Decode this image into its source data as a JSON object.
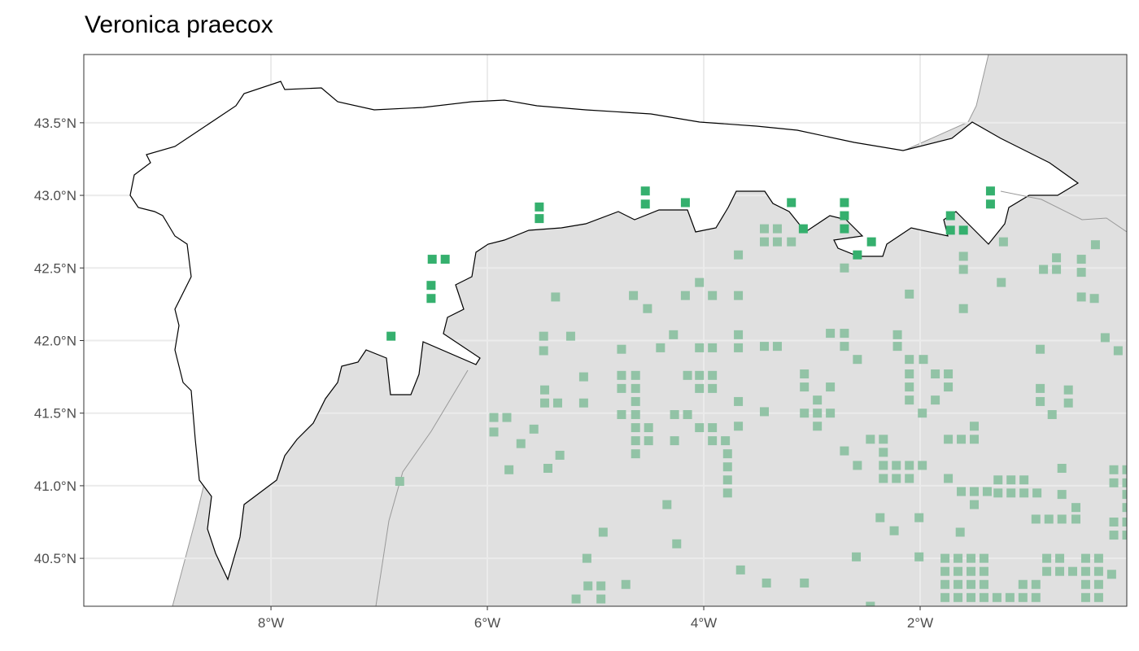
{
  "title": "Veronica praecox",
  "chart_data": {
    "type": "scatter",
    "title": "Veronica praecox",
    "xlim": [
      -9.73,
      -0.09
    ],
    "ylim": [
      40.17,
      43.97
    ],
    "x_ticks": [
      {
        "value": -8,
        "label": "8°W"
      },
      {
        "value": -6,
        "label": "6°W"
      },
      {
        "value": -4,
        "label": "4°W"
      },
      {
        "value": -2,
        "label": "2°W"
      }
    ],
    "y_ticks": [
      {
        "value": 43.5,
        "label": "43.5°N"
      },
      {
        "value": 43.0,
        "label": "43.0°N"
      },
      {
        "value": 42.5,
        "label": "42.5°N"
      },
      {
        "value": 42.0,
        "label": "42.0°N"
      },
      {
        "value": 41.5,
        "label": "41.5°N"
      },
      {
        "value": 41.0,
        "label": "41.0°N"
      },
      {
        "value": 40.5,
        "label": "40.5°N"
      }
    ],
    "grid": true,
    "colors": {
      "inside_region": "#35B06E",
      "outside_region": "#92C3A6",
      "land": "#E0E0E0",
      "region": "#FFFFFF"
    },
    "series": [
      {
        "points": [
          [
            -6.51,
            42.56
          ],
          [
            -6.39,
            42.56
          ],
          [
            -6.52,
            42.38
          ],
          [
            -6.52,
            42.29
          ],
          [
            -6.89,
            42.03
          ],
          [
            -5.52,
            42.92
          ],
          [
            -5.52,
            42.84
          ],
          [
            -4.54,
            43.03
          ],
          [
            -4.54,
            42.94
          ],
          [
            -4.17,
            42.95
          ],
          [
            -3.19,
            42.95
          ],
          [
            -3.08,
            42.77
          ],
          [
            -2.7,
            42.95
          ],
          [
            -2.7,
            42.86
          ],
          [
            -2.7,
            42.77
          ],
          [
            -2.45,
            42.68
          ],
          [
            -2.58,
            42.59
          ],
          [
            -1.72,
            42.86
          ],
          [
            -1.72,
            42.76
          ],
          [
            -1.6,
            42.76
          ],
          [
            -1.35,
            43.03
          ],
          [
            -1.35,
            42.94
          ]
        ]
      },
      {
        "points": [
          [
            -3.44,
            42.77
          ],
          [
            -3.32,
            42.77
          ],
          [
            -3.44,
            42.68
          ],
          [
            -3.32,
            42.68
          ],
          [
            -3.19,
            42.68
          ],
          [
            -3.68,
            42.59
          ],
          [
            -2.7,
            42.5
          ],
          [
            -1.6,
            42.58
          ],
          [
            -1.6,
            42.49
          ],
          [
            -1.23,
            42.68
          ],
          [
            -0.86,
            42.49
          ],
          [
            -0.74,
            42.57
          ],
          [
            -0.74,
            42.49
          ],
          [
            -0.51,
            42.56
          ],
          [
            -0.51,
            42.47
          ],
          [
            -0.38,
            42.66
          ],
          [
            -5.37,
            42.3
          ],
          [
            -4.65,
            42.31
          ],
          [
            -4.52,
            42.22
          ],
          [
            -4.04,
            42.4
          ],
          [
            -4.17,
            42.31
          ],
          [
            -3.92,
            42.31
          ],
          [
            -3.68,
            42.31
          ],
          [
            -2.1,
            42.32
          ],
          [
            -1.6,
            42.22
          ],
          [
            -1.25,
            42.4
          ],
          [
            -0.51,
            42.3
          ],
          [
            -0.39,
            42.29
          ],
          [
            -5.48,
            42.03
          ],
          [
            -5.48,
            41.93
          ],
          [
            -5.23,
            42.03
          ],
          [
            -4.76,
            41.94
          ],
          [
            -4.4,
            41.95
          ],
          [
            -4.28,
            42.04
          ],
          [
            -4.04,
            41.95
          ],
          [
            -3.92,
            41.95
          ],
          [
            -3.68,
            42.04
          ],
          [
            -3.68,
            41.95
          ],
          [
            -3.44,
            41.96
          ],
          [
            -3.32,
            41.96
          ],
          [
            -2.83,
            42.05
          ],
          [
            -2.7,
            42.05
          ],
          [
            -2.7,
            41.96
          ],
          [
            -2.58,
            41.87
          ],
          [
            -2.21,
            42.04
          ],
          [
            -2.21,
            41.96
          ],
          [
            -2.1,
            41.87
          ],
          [
            -1.97,
            41.87
          ],
          [
            -0.89,
            41.94
          ],
          [
            -0.29,
            42.02
          ],
          [
            -0.17,
            41.93
          ],
          [
            -5.47,
            41.66
          ],
          [
            -5.47,
            41.57
          ],
          [
            -5.35,
            41.57
          ],
          [
            -5.11,
            41.75
          ],
          [
            -5.11,
            41.57
          ],
          [
            -4.76,
            41.76
          ],
          [
            -4.63,
            41.76
          ],
          [
            -4.76,
            41.67
          ],
          [
            -4.63,
            41.67
          ],
          [
            -4.63,
            41.58
          ],
          [
            -4.76,
            41.49
          ],
          [
            -4.63,
            41.49
          ],
          [
            -4.51,
            41.4
          ],
          [
            -4.51,
            41.31
          ],
          [
            -4.63,
            41.4
          ],
          [
            -4.63,
            41.31
          ],
          [
            -4.63,
            41.22
          ],
          [
            -4.27,
            41.49
          ],
          [
            -4.15,
            41.49
          ],
          [
            -4.27,
            41.31
          ],
          [
            -4.15,
            41.76
          ],
          [
            -4.04,
            41.76
          ],
          [
            -3.92,
            41.76
          ],
          [
            -4.04,
            41.67
          ],
          [
            -3.92,
            41.67
          ],
          [
            -4.04,
            41.4
          ],
          [
            -3.92,
            41.4
          ],
          [
            -3.92,
            41.31
          ],
          [
            -3.8,
            41.31
          ],
          [
            -3.78,
            41.22
          ],
          [
            -3.78,
            41.13
          ],
          [
            -3.78,
            41.04
          ],
          [
            -3.78,
            40.95
          ],
          [
            -3.68,
            41.58
          ],
          [
            -3.68,
            41.41
          ],
          [
            -3.44,
            41.51
          ],
          [
            -3.07,
            41.77
          ],
          [
            -3.07,
            41.68
          ],
          [
            -3.07,
            41.5
          ],
          [
            -2.95,
            41.59
          ],
          [
            -2.95,
            41.5
          ],
          [
            -2.95,
            41.41
          ],
          [
            -2.83,
            41.5
          ],
          [
            -2.83,
            41.68
          ],
          [
            -2.1,
            41.77
          ],
          [
            -2.1,
            41.68
          ],
          [
            -2.1,
            41.59
          ],
          [
            -1.86,
            41.59
          ],
          [
            -1.98,
            41.5
          ],
          [
            -1.86,
            41.77
          ],
          [
            -1.74,
            41.77
          ],
          [
            -1.74,
            41.68
          ],
          [
            -0.89,
            41.67
          ],
          [
            -0.89,
            41.58
          ],
          [
            -0.78,
            41.49
          ],
          [
            -0.63,
            41.66
          ],
          [
            -0.63,
            41.57
          ],
          [
            -5.94,
            41.47
          ],
          [
            -5.82,
            41.47
          ],
          [
            -5.94,
            41.37
          ],
          [
            -5.69,
            41.29
          ],
          [
            -5.57,
            41.39
          ],
          [
            -5.33,
            41.21
          ],
          [
            -5.44,
            41.12
          ],
          [
            -5.8,
            41.11
          ],
          [
            -6.81,
            41.03
          ],
          [
            -2.7,
            41.24
          ],
          [
            -2.58,
            41.14
          ],
          [
            -2.46,
            41.32
          ],
          [
            -2.34,
            41.32
          ],
          [
            -2.34,
            41.23
          ],
          [
            -2.34,
            41.14
          ],
          [
            -2.34,
            41.05
          ],
          [
            -2.22,
            41.14
          ],
          [
            -2.22,
            41.05
          ],
          [
            -2.1,
            41.14
          ],
          [
            -1.98,
            41.14
          ],
          [
            -2.1,
            41.05
          ],
          [
            -1.74,
            41.32
          ],
          [
            -1.62,
            41.32
          ],
          [
            -1.5,
            41.32
          ],
          [
            -1.5,
            41.41
          ],
          [
            -1.74,
            41.05
          ],
          [
            -1.62,
            40.96
          ],
          [
            -1.5,
            40.96
          ],
          [
            -1.5,
            40.87
          ],
          [
            -1.38,
            40.96
          ],
          [
            -1.28,
            41.04
          ],
          [
            -1.16,
            41.04
          ],
          [
            -1.04,
            41.04
          ],
          [
            -1.28,
            40.95
          ],
          [
            -1.16,
            40.95
          ],
          [
            -1.04,
            40.95
          ],
          [
            -0.92,
            40.95
          ],
          [
            -0.69,
            41.12
          ],
          [
            -0.69,
            40.94
          ],
          [
            -0.56,
            40.85
          ],
          [
            -0.21,
            41.11
          ],
          [
            -0.09,
            41.11
          ],
          [
            -0.21,
            41.02
          ],
          [
            -0.09,
            41.02
          ],
          [
            -0.09,
            40.94
          ],
          [
            -0.09,
            40.85
          ],
          [
            -0.21,
            40.75
          ],
          [
            -0.09,
            40.75
          ],
          [
            -0.21,
            40.66
          ],
          [
            -0.09,
            40.66
          ],
          [
            -2.37,
            40.78
          ],
          [
            -2.24,
            40.69
          ],
          [
            -2.01,
            40.78
          ],
          [
            -0.93,
            40.77
          ],
          [
            -0.81,
            40.77
          ],
          [
            -0.69,
            40.77
          ],
          [
            -0.56,
            40.77
          ],
          [
            -1.63,
            40.68
          ],
          [
            -4.34,
            40.87
          ],
          [
            -4.25,
            40.6
          ],
          [
            -4.93,
            40.68
          ],
          [
            -2.59,
            40.51
          ],
          [
            -2.01,
            40.51
          ],
          [
            -5.08,
            40.5
          ],
          [
            -4.72,
            40.32
          ],
          [
            -5.07,
            40.31
          ],
          [
            -4.95,
            40.31
          ],
          [
            -5.18,
            40.22
          ],
          [
            -4.95,
            40.22
          ],
          [
            -3.66,
            40.42
          ],
          [
            -3.42,
            40.33
          ],
          [
            -3.07,
            40.33
          ],
          [
            -1.77,
            40.5
          ],
          [
            -1.65,
            40.5
          ],
          [
            -1.53,
            40.5
          ],
          [
            -1.41,
            40.5
          ],
          [
            -1.77,
            40.41
          ],
          [
            -1.65,
            40.41
          ],
          [
            -1.53,
            40.41
          ],
          [
            -1.41,
            40.41
          ],
          [
            -1.77,
            40.32
          ],
          [
            -1.65,
            40.32
          ],
          [
            -1.53,
            40.32
          ],
          [
            -1.41,
            40.32
          ],
          [
            -1.77,
            40.23
          ],
          [
            -1.65,
            40.23
          ],
          [
            -1.53,
            40.23
          ],
          [
            -1.41,
            40.23
          ],
          [
            -1.29,
            40.23
          ],
          [
            -1.17,
            40.23
          ],
          [
            -1.05,
            40.23
          ],
          [
            -0.93,
            40.23
          ],
          [
            -1.05,
            40.32
          ],
          [
            -0.93,
            40.32
          ],
          [
            -0.83,
            40.41
          ],
          [
            -0.83,
            40.5
          ],
          [
            -0.71,
            40.5
          ],
          [
            -0.71,
            40.41
          ],
          [
            -0.59,
            40.41
          ],
          [
            -0.47,
            40.5
          ],
          [
            -0.35,
            40.5
          ],
          [
            -0.47,
            40.41
          ],
          [
            -0.35,
            40.41
          ],
          [
            -0.23,
            40.39
          ],
          [
            -0.47,
            40.32
          ],
          [
            -0.35,
            40.32
          ],
          [
            -0.47,
            40.23
          ],
          [
            -0.35,
            40.23
          ],
          [
            -2.46,
            40.17
          ]
        ]
      }
    ]
  }
}
